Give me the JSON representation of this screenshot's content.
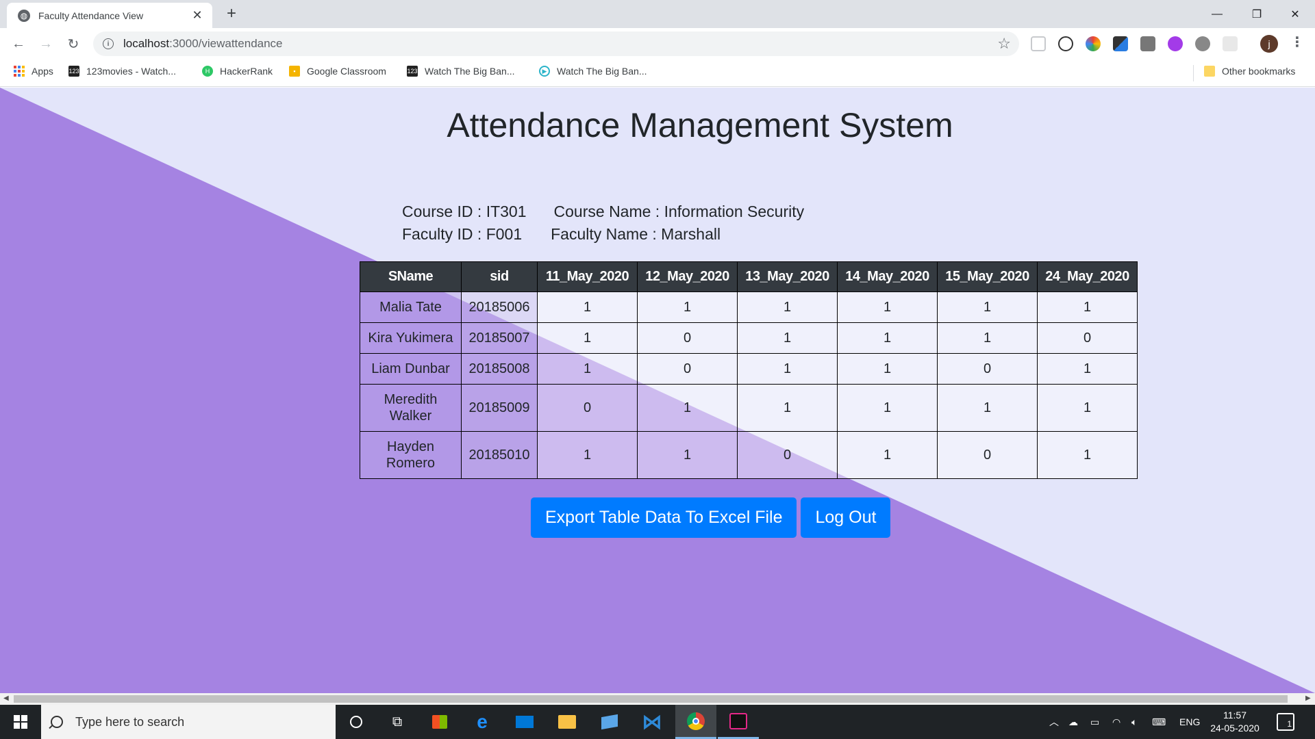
{
  "browser": {
    "tab_title": "Faculty Attendance View",
    "url_host": "localhost",
    "url_path": ":3000/viewattendance",
    "avatar_letter": "j",
    "bookmarks": [
      {
        "label": "Apps"
      },
      {
        "label": "123movies - Watch..."
      },
      {
        "label": "HackerRank"
      },
      {
        "label": "Google Classroom"
      },
      {
        "label": "Watch The Big Ban..."
      },
      {
        "label": "Watch The Big Ban..."
      }
    ],
    "other_bookmarks": "Other bookmarks"
  },
  "page": {
    "title": "Attendance Management System",
    "course_id_label": "Course ID : IT301",
    "course_name_label": "Course Name : Information Security",
    "faculty_id_label": "Faculty ID : F001",
    "faculty_name_label": "Faculty Name : Marshall"
  },
  "table": {
    "headers": [
      "SName",
      "sid",
      "11_May_2020",
      "12_May_2020",
      "13_May_2020",
      "14_May_2020",
      "15_May_2020",
      "24_May_2020"
    ],
    "rows": [
      {
        "name": "Malia Tate",
        "sid": "20185006",
        "values": [
          "1",
          "1",
          "1",
          "1",
          "1",
          "1"
        ]
      },
      {
        "name": "Kira Yukimera",
        "sid": "20185007",
        "values": [
          "1",
          "0",
          "1",
          "1",
          "1",
          "0"
        ]
      },
      {
        "name": "Liam Dunbar",
        "sid": "20185008",
        "values": [
          "1",
          "0",
          "1",
          "1",
          "0",
          "1"
        ]
      },
      {
        "name": "Meredith Walker",
        "sid": "20185009",
        "values": [
          "0",
          "1",
          "1",
          "1",
          "1",
          "1"
        ]
      },
      {
        "name": "Hayden Romero",
        "sid": "20185010",
        "values": [
          "1",
          "1",
          "0",
          "1",
          "0",
          "1"
        ]
      }
    ]
  },
  "actions": {
    "export_label": "Export Table Data To Excel File",
    "logout_label": "Log Out"
  },
  "taskbar": {
    "search_placeholder": "Type here to search",
    "language": "ENG",
    "time": "11:57",
    "date": "24-05-2020",
    "notification_count": "1"
  },
  "colors": {
    "page_bg": "#e3e5fa",
    "diagonal": "#a583e2",
    "header_bg": "#343a40",
    "button_bg": "#007bff"
  }
}
